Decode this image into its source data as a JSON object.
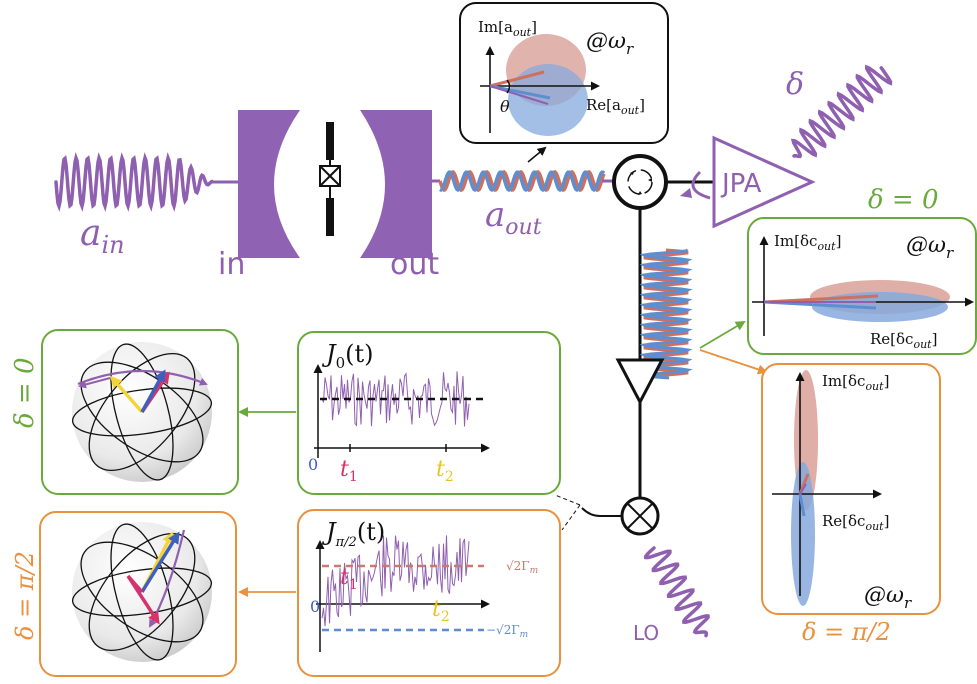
{
  "colors": {
    "purple": "#8f5fb0",
    "purple_fill": "#9062b3",
    "green": "#6aaa3c",
    "orange": "#e8913f",
    "red_wave": "#cf6f5e",
    "blue_wave": "#5d8fd0",
    "red_blob": "#d79a91",
    "blue_blob": "#86a9dc",
    "magenta": "#d6336c",
    "yellow": "#f1d43a",
    "arrow_blue": "#3f5fbf",
    "dash_red": "#c87970",
    "dash_blue": "#5e8bd0"
  },
  "labels": {
    "a_in": "a",
    "a_in_sub": "in",
    "in": "in",
    "out": "out",
    "a_out": "a",
    "a_out_sub": "out",
    "jpa": "JPA",
    "delta": "δ",
    "lo": "LO",
    "delta_zero": "δ = 0",
    "delta_pi2": "δ = π/2"
  },
  "top_inset": {
    "im": "Im[a",
    "im_sub": "out",
    "close": "]",
    "re": "Re[a",
    "re_sub": "out",
    "at": "@ω",
    "at_sub": "r",
    "theta": "θ"
  },
  "right_inset_top": {
    "im": "Im[δc",
    "im_sub": "out",
    "close": "]",
    "re": "Re[δc",
    "re_sub": "out",
    "at": "@ω",
    "at_sub": "r"
  },
  "right_inset_bottom": {
    "im": "Im[δc",
    "im_sub": "out",
    "close": "]",
    "re": "Re[δc",
    "re_sub": "out",
    "at": "@ω",
    "at_sub": "r"
  },
  "trace_top": {
    "title": "J",
    "title_sub": "0",
    "title_arg": "(t)",
    "zero": "0",
    "t1": "t",
    "t1_sub": "1",
    "t2": "t",
    "t2_sub": "2"
  },
  "trace_bottom": {
    "title": "J",
    "title_sub": "π/2",
    "title_arg": "(t)",
    "zero": "0",
    "t1": "t",
    "t1_sub": "1",
    "t2": "t",
    "t2_sub": "2",
    "plus": "√2Γ",
    "plus_sub": "m",
    "minus": "−√2Γ",
    "minus_sub": "m"
  }
}
